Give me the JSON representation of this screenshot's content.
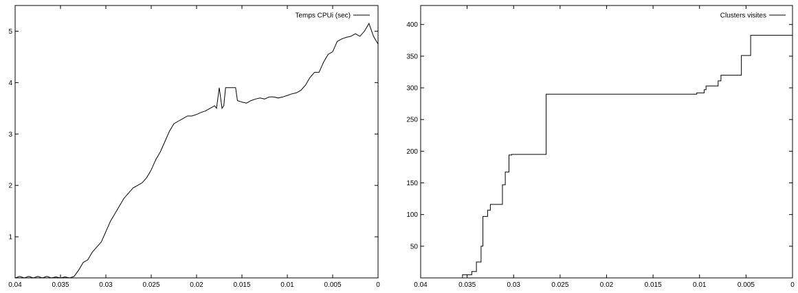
{
  "chart_data": [
    {
      "type": "line",
      "title": "",
      "xlabel": "",
      "ylabel": "",
      "xlim": [
        0.04,
        0
      ],
      "ylim": [
        0.2,
        5.5
      ],
      "grid": false,
      "legend_position": "top-right",
      "x_ticks": [
        "0.04",
        "0.035",
        "0.03",
        "0.025",
        "0.02",
        "0.015",
        "0.01",
        "0.005",
        "0"
      ],
      "x_tick_values": [
        0.04,
        0.035,
        0.03,
        0.025,
        0.02,
        0.015,
        0.01,
        0.005,
        0
      ],
      "y_ticks": [
        "1",
        "2",
        "3",
        "4",
        "5"
      ],
      "y_tick_values": [
        1,
        2,
        3,
        4,
        5
      ],
      "series": [
        {
          "name": "Temps CPUi (sec)",
          "color": "#000000",
          "points": [
            [
              0.04,
              0.2
            ],
            [
              0.0395,
              0.23
            ],
            [
              0.039,
              0.2
            ],
            [
              0.0385,
              0.23
            ],
            [
              0.038,
              0.2
            ],
            [
              0.0375,
              0.23
            ],
            [
              0.037,
              0.2
            ],
            [
              0.0365,
              0.23
            ],
            [
              0.036,
              0.2
            ],
            [
              0.0355,
              0.22
            ],
            [
              0.035,
              0.2
            ],
            [
              0.0345,
              0.22
            ],
            [
              0.034,
              0.2
            ],
            [
              0.0335,
              0.23
            ],
            [
              0.033,
              0.35
            ],
            [
              0.0325,
              0.5
            ],
            [
              0.032,
              0.55
            ],
            [
              0.0315,
              0.7
            ],
            [
              0.031,
              0.8
            ],
            [
              0.0305,
              0.9
            ],
            [
              0.03,
              1.1
            ],
            [
              0.0295,
              1.3
            ],
            [
              0.029,
              1.45
            ],
            [
              0.0285,
              1.6
            ],
            [
              0.028,
              1.75
            ],
            [
              0.0275,
              1.85
            ],
            [
              0.027,
              1.95
            ],
            [
              0.0265,
              2.0
            ],
            [
              0.026,
              2.05
            ],
            [
              0.0255,
              2.15
            ],
            [
              0.025,
              2.3
            ],
            [
              0.0245,
              2.5
            ],
            [
              0.024,
              2.65
            ],
            [
              0.0235,
              2.85
            ],
            [
              0.023,
              3.05
            ],
            [
              0.0225,
              3.2
            ],
            [
              0.022,
              3.25
            ],
            [
              0.0215,
              3.3
            ],
            [
              0.021,
              3.35
            ],
            [
              0.0205,
              3.35
            ],
            [
              0.02,
              3.38
            ],
            [
              0.0195,
              3.42
            ],
            [
              0.019,
              3.45
            ],
            [
              0.0185,
              3.5
            ],
            [
              0.018,
              3.55
            ],
            [
              0.0178,
              3.5
            ],
            [
              0.0175,
              3.9
            ],
            [
              0.0172,
              3.5
            ],
            [
              0.017,
              3.55
            ],
            [
              0.0168,
              3.9
            ],
            [
              0.0165,
              3.9
            ],
            [
              0.016,
              3.9
            ],
            [
              0.0157,
              3.9
            ],
            [
              0.0155,
              3.65
            ],
            [
              0.015,
              3.62
            ],
            [
              0.0145,
              3.6
            ],
            [
              0.014,
              3.65
            ],
            [
              0.0135,
              3.68
            ],
            [
              0.013,
              3.7
            ],
            [
              0.0125,
              3.68
            ],
            [
              0.012,
              3.72
            ],
            [
              0.0115,
              3.72
            ],
            [
              0.011,
              3.7
            ],
            [
              0.0105,
              3.72
            ],
            [
              0.01,
              3.75
            ],
            [
              0.0095,
              3.78
            ],
            [
              0.009,
              3.8
            ],
            [
              0.0085,
              3.85
            ],
            [
              0.008,
              3.95
            ],
            [
              0.0075,
              4.1
            ],
            [
              0.007,
              4.2
            ],
            [
              0.0065,
              4.2
            ],
            [
              0.006,
              4.4
            ],
            [
              0.0055,
              4.55
            ],
            [
              0.005,
              4.6
            ],
            [
              0.0045,
              4.8
            ],
            [
              0.004,
              4.85
            ],
            [
              0.0035,
              4.88
            ],
            [
              0.003,
              4.9
            ],
            [
              0.0025,
              4.95
            ],
            [
              0.002,
              4.9
            ],
            [
              0.0015,
              5.0
            ],
            [
              0.001,
              5.15
            ],
            [
              0.0005,
              4.9
            ],
            [
              0.0,
              4.75
            ]
          ]
        }
      ]
    },
    {
      "type": "line",
      "title": "",
      "xlabel": "",
      "ylabel": "",
      "xlim": [
        0.04,
        0
      ],
      "ylim": [
        0,
        430
      ],
      "grid": false,
      "legend_position": "top-right",
      "x_ticks": [
        "0.04",
        "0.035",
        "0.03",
        "0.025",
        "0.02",
        "0.015",
        "0.01",
        "0.005",
        "0"
      ],
      "x_tick_values": [
        0.04,
        0.035,
        0.03,
        0.025,
        0.02,
        0.015,
        0.01,
        0.005,
        0
      ],
      "y_ticks": [
        "50",
        "100",
        "150",
        "200",
        "250",
        "300",
        "350",
        "400"
      ],
      "y_tick_values": [
        50,
        100,
        150,
        200,
        250,
        300,
        350,
        400
      ],
      "series": [
        {
          "name": "Clusters visites",
          "color": "#000000",
          "step": true,
          "points": [
            [
              0.04,
              0
            ],
            [
              0.0355,
              0
            ],
            [
              0.0355,
              5
            ],
            [
              0.0345,
              5
            ],
            [
              0.0345,
              10
            ],
            [
              0.034,
              10
            ],
            [
              0.034,
              25
            ],
            [
              0.0335,
              25
            ],
            [
              0.0335,
              50
            ],
            [
              0.0333,
              50
            ],
            [
              0.0333,
              97
            ],
            [
              0.0328,
              97
            ],
            [
              0.0328,
              107
            ],
            [
              0.0325,
              107
            ],
            [
              0.0325,
              116
            ],
            [
              0.0312,
              116
            ],
            [
              0.0312,
              147
            ],
            [
              0.0309,
              147
            ],
            [
              0.0309,
              167
            ],
            [
              0.0305,
              167
            ],
            [
              0.0305,
              194
            ],
            [
              0.0302,
              194
            ],
            [
              0.0302,
              195
            ],
            [
              0.0265,
              195
            ],
            [
              0.0265,
              290
            ],
            [
              0.0103,
              290
            ],
            [
              0.0103,
              292
            ],
            [
              0.0095,
              292
            ],
            [
              0.0095,
              297
            ],
            [
              0.0093,
              297
            ],
            [
              0.0093,
              303
            ],
            [
              0.008,
              303
            ],
            [
              0.008,
              311
            ],
            [
              0.0077,
              311
            ],
            [
              0.0077,
              320
            ],
            [
              0.0055,
              320
            ],
            [
              0.0055,
              351
            ],
            [
              0.0045,
              351
            ],
            [
              0.0045,
              383
            ],
            [
              0.0,
              383
            ]
          ]
        }
      ]
    }
  ]
}
